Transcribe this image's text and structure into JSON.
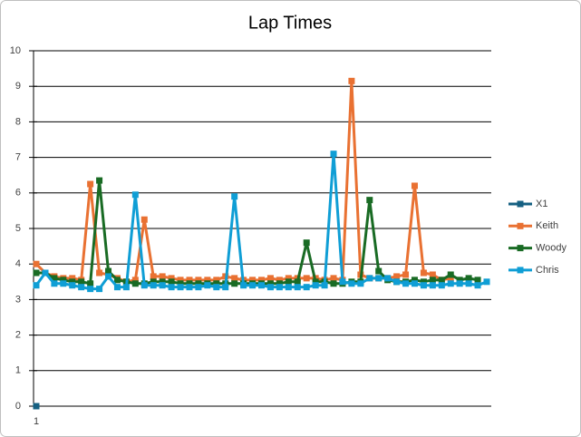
{
  "chart_data": {
    "type": "line",
    "title": "Lap Times",
    "categories": [
      "1",
      null,
      null,
      null,
      null,
      null,
      null,
      null,
      null,
      null,
      null,
      null,
      null,
      null,
      null,
      null,
      null,
      null,
      null,
      null,
      null,
      null,
      null,
      null,
      null,
      null,
      null,
      null,
      null,
      null,
      null,
      null,
      null,
      null,
      null,
      null,
      null,
      null,
      null,
      null,
      null,
      null,
      null,
      null,
      null,
      null,
      null,
      null,
      null,
      null,
      null
    ],
    "ylim": [
      0,
      10
    ],
    "yticks": [
      0,
      1,
      2,
      3,
      4,
      5,
      6,
      7,
      8,
      9,
      10
    ],
    "grid": true,
    "legend": "right",
    "series": [
      {
        "name": "X1",
        "color": "#156082",
        "values": [
          0,
          null,
          null,
          null,
          null,
          null,
          null,
          null,
          null,
          null,
          null,
          null,
          null,
          null,
          null,
          null,
          null,
          null,
          null,
          null,
          null,
          null,
          null,
          null,
          null,
          null,
          null,
          null,
          null,
          null,
          null,
          null,
          null,
          null,
          null,
          null,
          null,
          null,
          null,
          null,
          null,
          null,
          null,
          null,
          null,
          null,
          null,
          null,
          null,
          null,
          null
        ]
      },
      {
        "name": "Keith",
        "color": "#e97132",
        "values": [
          4.0,
          3.75,
          3.65,
          3.6,
          3.6,
          3.55,
          6.25,
          3.75,
          3.7,
          3.6,
          3.5,
          3.55,
          5.25,
          3.65,
          3.65,
          3.6,
          3.55,
          3.55,
          3.55,
          3.55,
          3.55,
          3.65,
          3.6,
          3.55,
          3.55,
          3.55,
          3.6,
          3.55,
          3.6,
          3.6,
          3.6,
          3.6,
          3.55,
          3.6,
          3.55,
          9.15,
          3.7,
          3.6,
          3.6,
          3.6,
          3.65,
          3.7,
          6.2,
          3.75,
          3.7,
          3.55,
          3.6,
          null,
          null,
          null,
          null
        ]
      },
      {
        "name": "Woody",
        "color": "#196b24",
        "values": [
          3.75,
          3.75,
          3.6,
          3.55,
          3.5,
          3.5,
          3.45,
          6.35,
          3.8,
          3.55,
          3.5,
          3.45,
          3.45,
          3.5,
          3.5,
          3.5,
          3.45,
          3.45,
          3.45,
          3.45,
          3.45,
          3.45,
          3.45,
          3.45,
          3.45,
          3.45,
          3.45,
          3.45,
          3.5,
          3.5,
          4.6,
          3.5,
          3.5,
          3.45,
          3.45,
          3.5,
          3.5,
          5.8,
          3.8,
          3.55,
          3.5,
          3.5,
          3.55,
          3.5,
          3.55,
          3.55,
          3.7,
          3.55,
          3.6,
          3.55,
          null
        ]
      },
      {
        "name": "Chris",
        "color": "#0f9ed5",
        "values": [
          3.4,
          3.75,
          3.45,
          3.45,
          3.4,
          3.35,
          3.3,
          3.3,
          3.65,
          3.35,
          3.35,
          5.95,
          3.4,
          3.4,
          3.4,
          3.35,
          3.35,
          3.35,
          3.35,
          3.4,
          3.35,
          3.35,
          5.9,
          3.4,
          3.4,
          3.4,
          3.35,
          3.35,
          3.35,
          3.35,
          3.35,
          3.4,
          3.4,
          7.1,
          3.5,
          3.45,
          3.45,
          3.6,
          3.6,
          3.6,
          3.5,
          3.45,
          3.45,
          3.4,
          3.4,
          3.4,
          3.45,
          3.45,
          3.45,
          3.4,
          3.5
        ]
      }
    ]
  }
}
